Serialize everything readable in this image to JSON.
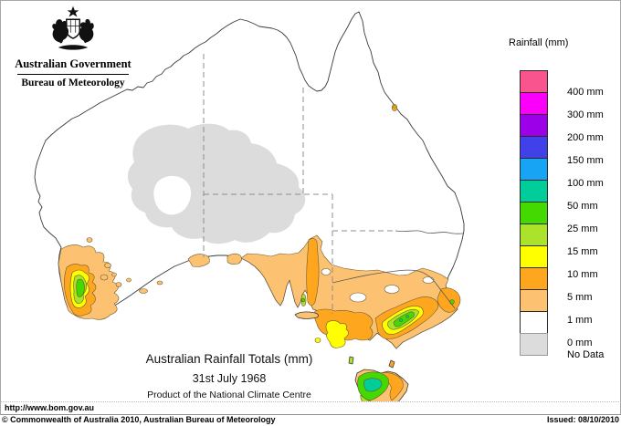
{
  "header": {
    "logo": "australian-coat-of-arms",
    "government_title": "Australian Government",
    "bureau_title": "Bureau of Meteorology"
  },
  "legend": {
    "title": "Rainfall (mm)",
    "items": [
      {
        "label": "400 mm",
        "color": "#f9548e",
        "label_align": "boundary"
      },
      {
        "label": "300 mm",
        "color": "#fa00fa",
        "label_align": "boundary"
      },
      {
        "label": "200 mm",
        "color": "#9c00e8",
        "label_align": "boundary"
      },
      {
        "label": "150 mm",
        "color": "#4141e9",
        "label_align": "boundary"
      },
      {
        "label": "100 mm",
        "color": "#18a4f5",
        "label_align": "boundary"
      },
      {
        "label": "50 mm",
        "color": "#00cd9a",
        "label_align": "boundary"
      },
      {
        "label": "25 mm",
        "color": "#44d900",
        "label_align": "boundary"
      },
      {
        "label": "15 mm",
        "color": "#abe32b",
        "label_align": "boundary"
      },
      {
        "label": "10 mm",
        "color": "#ffff00",
        "label_align": "boundary"
      },
      {
        "label": "5 mm",
        "color": "#ffa61f",
        "label_align": "boundary"
      },
      {
        "label": "1 mm",
        "color": "#fcc272",
        "label_align": "boundary"
      },
      {
        "label": "0 mm",
        "color": "#ffffff",
        "label_align": "boundary"
      },
      {
        "label": "No Data",
        "color": "#dcdcdc",
        "label_align": "center"
      }
    ]
  },
  "caption": {
    "title": "Australian Rainfall Totals (mm)",
    "date": "31st July 1968",
    "product": "Product of the National Climate Centre"
  },
  "footer": {
    "url": "http://www.bom.gov.au",
    "copyright": "© Commonwealth of Australia 2010, Australian Bureau of Meteorology",
    "issued": "Issued: 08/10/2010"
  }
}
